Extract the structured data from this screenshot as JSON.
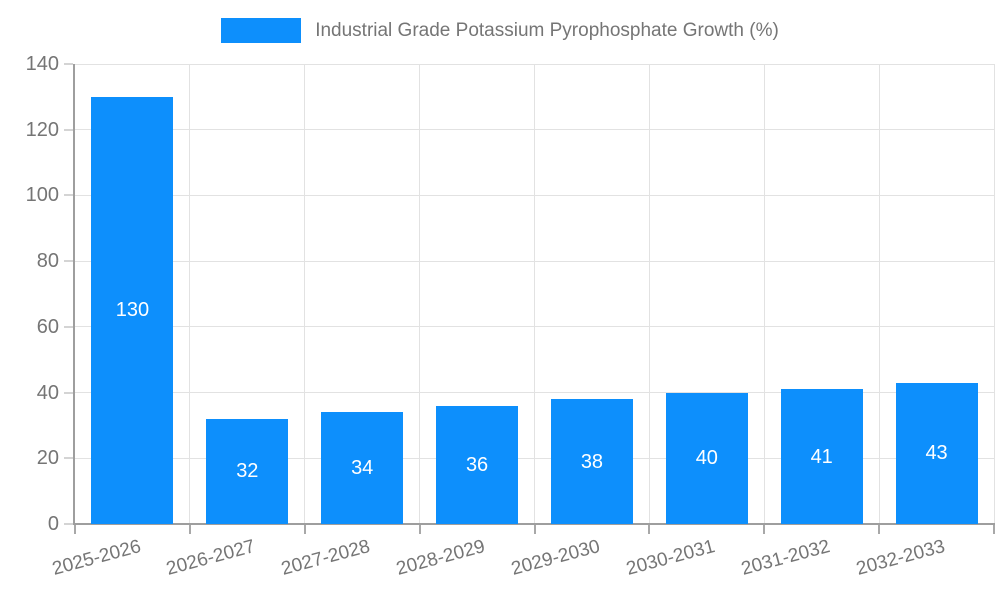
{
  "legend": {
    "label": "Industrial Grade Potassium Pyrophosphate Growth (%)"
  },
  "colors": {
    "bar": "#0D8FFC",
    "bar_label": "#ffffff",
    "axis": "#9e9e9e",
    "grid": "#e2e2e2",
    "y_tick": "#d4d4d4",
    "x_tick": "#a8a8a8",
    "text": "#757575",
    "background": "#ffffff"
  },
  "chart_data": {
    "type": "bar",
    "title": "Industrial Grade Potassium Pyrophosphate Growth (%)",
    "categories": [
      "2025-2026",
      "2026-2027",
      "2027-2028",
      "2028-2029",
      "2029-2030",
      "2030-2031",
      "2031-2032",
      "2032-2033"
    ],
    "values": [
      130,
      32,
      34,
      36,
      38,
      40,
      41,
      43
    ],
    "xlabel": "",
    "ylabel": "",
    "ylim": [
      0,
      140
    ],
    "ytick_step": 20,
    "ytick_labels": [
      "0",
      "20",
      "40",
      "60",
      "80",
      "100",
      "120",
      "140"
    ],
    "grid": true,
    "legend_position": "top-center",
    "bar_labels_inside": true,
    "bar_label_position": "center",
    "x_label_rotation_deg": -15
  }
}
